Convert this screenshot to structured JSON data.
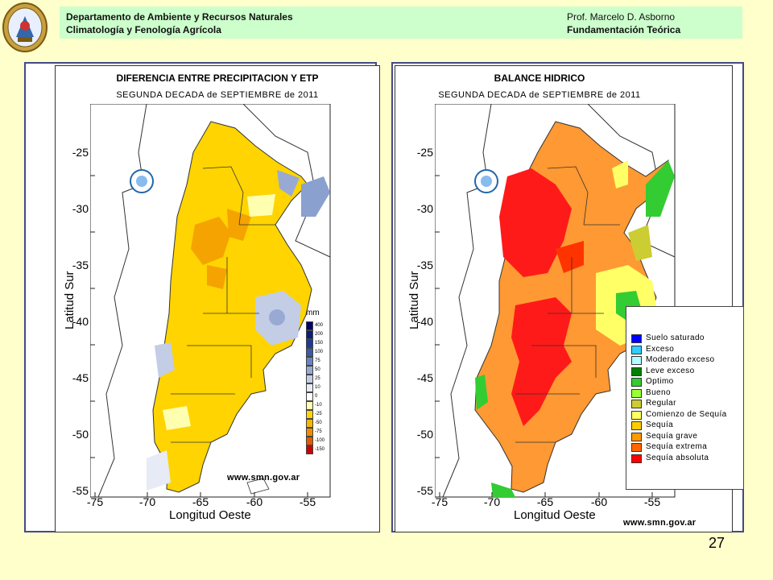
{
  "header": {
    "left_line1": "Departamento de Ambiente y Recursos Naturales",
    "left_line2": "Climatología y Fenología Agrícola",
    "right_line1": "Prof. Marcelo D. Asborno",
    "right_line2": "Fundamentación Teórica"
  },
  "left_map": {
    "title": "DIFERENCIA ENTRE PRECIPITACION Y ETP",
    "subtitle": "SEGUNDA DECADA de SEPTIEMBRE de 2011",
    "y_axis_label": "Latitud Sur",
    "x_axis_label": "Longitud Oeste",
    "y_ticks": [
      "-25",
      "-30",
      "-35",
      "-40",
      "-45",
      "-50",
      "-55"
    ],
    "x_ticks": [
      "-75",
      "-70",
      "-65",
      "-60",
      "-55"
    ],
    "credit": "www.smn.gov.ar",
    "legend_unit": "mm",
    "legend": [
      {
        "label": "400",
        "color": "#000066"
      },
      {
        "label": "200",
        "color": "#0a1f7a"
      },
      {
        "label": "150",
        "color": "#1f3a93"
      },
      {
        "label": "100",
        "color": "#3c5aa8"
      },
      {
        "label": "75",
        "color": "#6b84c0"
      },
      {
        "label": "50",
        "color": "#98aad4"
      },
      {
        "label": "25",
        "color": "#c3cde6"
      },
      {
        "label": "10",
        "color": "#e6ebf5"
      },
      {
        "label": "0",
        "color": "#ffffff"
      },
      {
        "label": "-10",
        "color": "#ffffb0"
      },
      {
        "label": "-25",
        "color": "#ffd700"
      },
      {
        "label": "-50",
        "color": "#f5b800"
      },
      {
        "label": "-75",
        "color": "#f08c00"
      },
      {
        "label": "-100",
        "color": "#e35a00"
      },
      {
        "label": "-150",
        "color": "#cc0000"
      }
    ]
  },
  "right_map": {
    "title": "BALANCE HIDRICO",
    "subtitle": "SEGUNDA DECADA de SEPTIEMBRE de 2011",
    "y_axis_label": "Latitud Sur",
    "x_axis_label": "Longitud Oeste",
    "y_ticks": [
      "-25",
      "-30",
      "-35",
      "-40",
      "-45",
      "-50",
      "-55"
    ],
    "x_ticks": [
      "-75",
      "-70",
      "-65",
      "-60",
      "-55"
    ],
    "credit": "www.smn.gov.ar",
    "legend": [
      {
        "label": "Suelo saturado",
        "color": "#0000ff"
      },
      {
        "label": "Exceso",
        "color": "#33ccff"
      },
      {
        "label": "Moderado exceso",
        "color": "#b3ffff"
      },
      {
        "label": "Leve exceso",
        "color": "#008000"
      },
      {
        "label": "Optimo",
        "color": "#33cc33"
      },
      {
        "label": "Bueno",
        "color": "#99ff33"
      },
      {
        "label": "Regular",
        "color": "#cccc33"
      },
      {
        "label": "Comienzo de Sequía",
        "color": "#ffff66"
      },
      {
        "label": "Sequía",
        "color": "#ffcc00"
      },
      {
        "label": "Sequía grave",
        "color": "#ff9900"
      },
      {
        "label": "Sequía extrema",
        "color": "#ff6600"
      },
      {
        "label": "Sequía absoluta",
        "color": "#ff0000"
      }
    ]
  },
  "page_number": "27"
}
